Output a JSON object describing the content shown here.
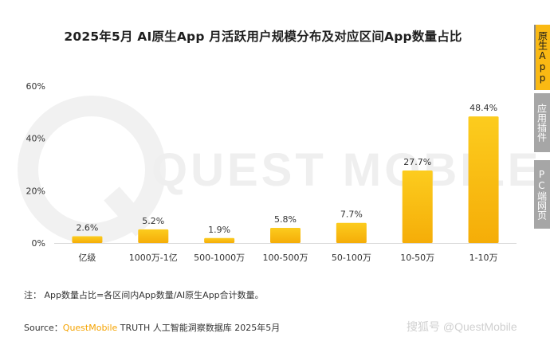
{
  "title": "2025年5月 AI原生App 月活跃用户规模分布及对应区间App数量占比",
  "side_tabs": [
    {
      "label": "原生App",
      "active": true
    },
    {
      "label": "应用插件",
      "active": false
    },
    {
      "label": "PC端网页",
      "active": false
    }
  ],
  "watermark": "QUEST MOBILE",
  "note": "注：  App数量占比=各区间内App数量/AI原生App合计数量。",
  "source": {
    "prefix": "Source：",
    "brand": "QuestMobile",
    "rest": " TRUTH 人工智能洞察数据库 2025年5月"
  },
  "credit": "搜狐号 @QuestMobile",
  "colors": {
    "bar_top": "#fccc1e",
    "bar_bottom": "#f5ad08",
    "accent": "#fab913",
    "axis": "#d9d9d9"
  },
  "chart_data": {
    "type": "bar",
    "categories": [
      "亿级",
      "1000万-1亿",
      "500-1000万",
      "100-500万",
      "50-100万",
      "10-50万",
      "1-10万"
    ],
    "values": [
      2.6,
      5.2,
      1.9,
      5.8,
      7.7,
      27.7,
      48.4
    ],
    "value_labels": [
      "2.6%",
      "5.2%",
      "1.9%",
      "5.8%",
      "7.7%",
      "27.7%",
      "48.4%"
    ],
    "yticks": [
      0,
      20,
      40,
      60
    ],
    "ytick_labels": [
      "0%",
      "20%",
      "40%",
      "60%"
    ],
    "ylim": [
      0,
      60
    ],
    "grid": false,
    "legend": "none"
  }
}
